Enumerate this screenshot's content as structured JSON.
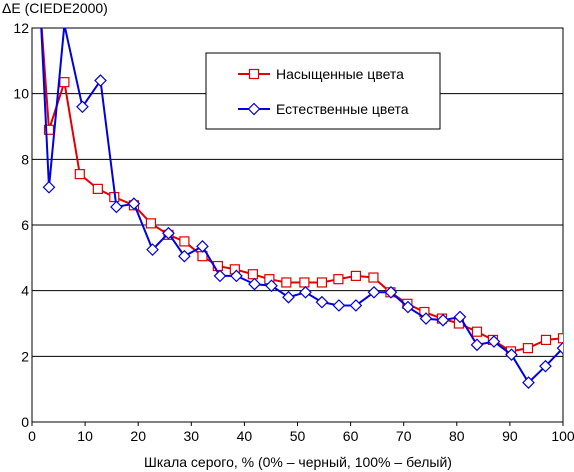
{
  "chart_data": {
    "type": "line",
    "title": "",
    "ylabel": "ΔE (CIEDE2000)",
    "xlabel": "Шкала серого, % (0% – черный, 100% – белый)",
    "xlim": [
      0,
      100
    ],
    "ylim": [
      0,
      12
    ],
    "xticks": [
      0,
      10,
      20,
      30,
      40,
      50,
      60,
      70,
      80,
      90,
      100
    ],
    "yticks": [
      0,
      2,
      4,
      6,
      8,
      10,
      12
    ],
    "grid": "horizontal",
    "legend_position": "top-right",
    "series": [
      {
        "name": "Насыщенные цвета",
        "color": "#e00000",
        "marker": "square",
        "x": [
          1.6,
          3.2,
          6.1,
          9.0,
          12.4,
          15.5,
          19.2,
          22.4,
          25.7,
          28.7,
          32.1,
          35.0,
          38.2,
          41.6,
          44.7,
          47.9,
          51.3,
          54.6,
          57.7,
          61.0,
          64.3,
          67.5,
          70.7,
          73.9,
          77.2,
          80.4,
          83.8,
          86.8,
          90.2,
          93.4,
          96.8,
          100
        ],
        "y": [
          12.5,
          8.9,
          10.35,
          7.55,
          7.1,
          6.85,
          6.6,
          6.05,
          5.7,
          5.5,
          5.05,
          4.75,
          4.65,
          4.5,
          4.35,
          4.25,
          4.25,
          4.25,
          4.35,
          4.45,
          4.4,
          3.95,
          3.6,
          3.35,
          3.15,
          3.0,
          2.75,
          2.5,
          2.15,
          2.25,
          2.5,
          2.55
        ]
      },
      {
        "name": "Естественные цвета",
        "color": "#0000e0",
        "marker": "diamond",
        "x": [
          1.6,
          3.2,
          6.1,
          9.5,
          12.9,
          15.9,
          19.2,
          22.7,
          25.7,
          28.7,
          32.1,
          35.4,
          38.5,
          41.9,
          45.1,
          48.3,
          51.5,
          54.6,
          57.8,
          61.0,
          64.4,
          67.6,
          70.8,
          74.2,
          77.4,
          80.6,
          83.8,
          87.0,
          90.3,
          93.5,
          96.7,
          100
        ],
        "y": [
          12.5,
          7.15,
          12.1,
          9.6,
          10.4,
          6.55,
          6.65,
          5.25,
          5.75,
          5.05,
          5.35,
          4.45,
          4.45,
          4.2,
          4.15,
          3.8,
          3.95,
          3.65,
          3.55,
          3.55,
          3.95,
          3.95,
          3.5,
          3.15,
          3.1,
          3.2,
          2.35,
          2.45,
          2.05,
          1.2,
          1.7,
          2.25
        ]
      }
    ]
  }
}
